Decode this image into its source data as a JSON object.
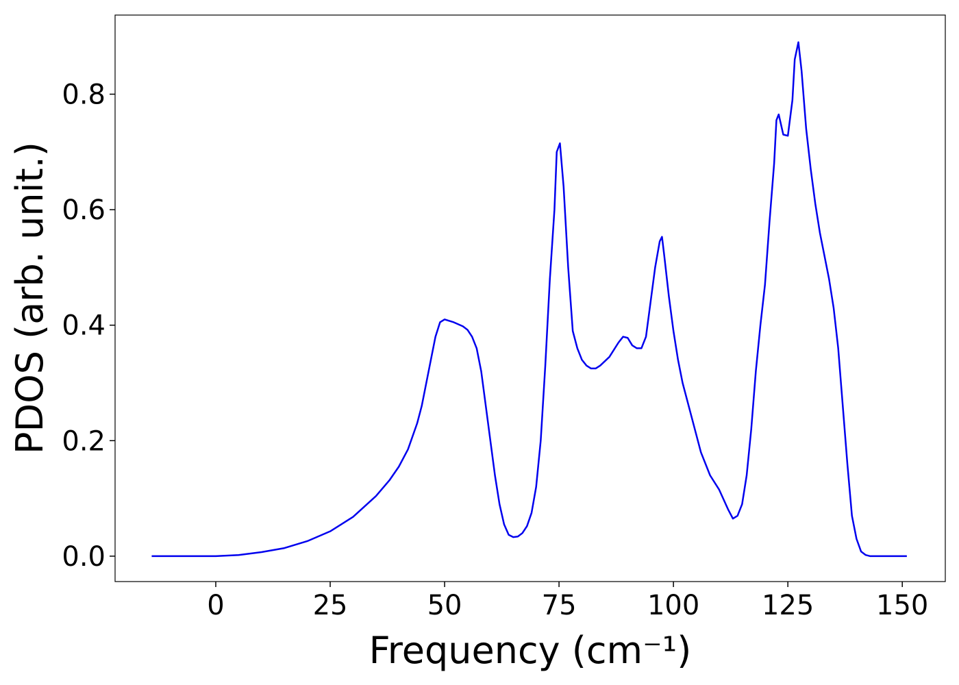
{
  "chart_data": {
    "type": "line",
    "xlabel": "Frequency (cm⁻¹)",
    "ylabel": "PDOS (arb. unit.)",
    "x": [
      -14,
      0,
      5,
      10,
      15,
      20,
      25,
      30,
      35,
      38,
      40,
      42,
      44,
      45,
      46,
      47,
      48,
      49,
      50,
      52,
      54,
      55,
      56,
      57,
      58,
      59,
      60,
      61,
      62,
      63,
      64,
      65,
      66,
      67,
      68,
      69,
      70,
      71,
      72,
      73,
      74,
      74.5,
      75.2,
      76,
      77,
      78,
      79,
      80,
      81,
      82,
      83,
      84,
      86,
      88,
      89,
      90,
      91,
      92,
      93,
      94,
      95,
      96,
      97,
      97.5,
      98,
      99,
      100,
      101,
      102,
      104,
      106,
      108,
      110,
      112,
      113,
      114,
      115,
      116,
      117,
      118,
      119,
      120,
      121,
      122,
      122.5,
      123,
      124,
      125,
      126,
      126.5,
      127.3,
      128,
      129,
      130,
      131,
      132,
      133,
      134,
      135,
      136,
      137,
      138,
      139,
      140,
      141,
      142,
      143,
      151
    ],
    "series": [
      {
        "name": "PDOS",
        "color": "#0000ee",
        "values": [
          0,
          0,
          0.002,
          0.007,
          0.014,
          0.026,
          0.043,
          0.068,
          0.104,
          0.132,
          0.155,
          0.185,
          0.23,
          0.26,
          0.3,
          0.34,
          0.38,
          0.405,
          0.41,
          0.405,
          0.398,
          0.392,
          0.38,
          0.36,
          0.32,
          0.26,
          0.2,
          0.14,
          0.09,
          0.055,
          0.037,
          0.033,
          0.034,
          0.04,
          0.052,
          0.075,
          0.12,
          0.2,
          0.33,
          0.48,
          0.6,
          0.7,
          0.715,
          0.64,
          0.5,
          0.39,
          0.36,
          0.34,
          0.33,
          0.325,
          0.325,
          0.33,
          0.345,
          0.37,
          0.38,
          0.378,
          0.365,
          0.36,
          0.36,
          0.38,
          0.44,
          0.5,
          0.545,
          0.553,
          0.52,
          0.45,
          0.39,
          0.34,
          0.3,
          0.24,
          0.18,
          0.14,
          0.115,
          0.08,
          0.065,
          0.07,
          0.09,
          0.14,
          0.22,
          0.32,
          0.4,
          0.47,
          0.58,
          0.68,
          0.755,
          0.765,
          0.73,
          0.728,
          0.79,
          0.86,
          0.89,
          0.84,
          0.74,
          0.67,
          0.61,
          0.56,
          0.52,
          0.48,
          0.43,
          0.36,
          0.26,
          0.16,
          0.07,
          0.03,
          0.008,
          0.002,
          0,
          0
        ]
      }
    ],
    "xlim": [
      -22,
      159.4
    ],
    "ylim": [
      -0.044,
      0.937
    ],
    "xticks": [
      0,
      25,
      50,
      75,
      100,
      125,
      150
    ],
    "yticks": [
      {
        "value": 0,
        "label": "0.0"
      },
      {
        "value": 0.2,
        "label": "0.2"
      },
      {
        "value": 0.4,
        "label": "0.4"
      },
      {
        "value": 0.6,
        "label": "0.6"
      },
      {
        "value": 0.8,
        "label": "0.8"
      }
    ],
    "grid": false
  }
}
